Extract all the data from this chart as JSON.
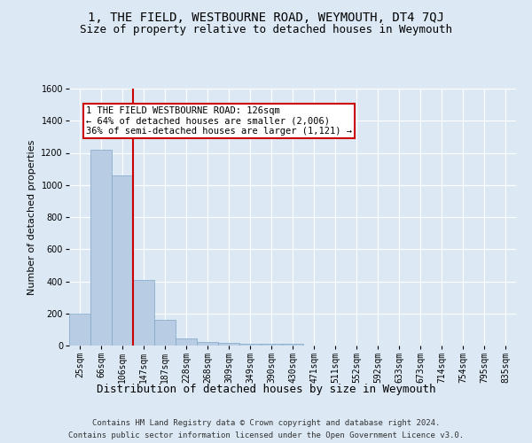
{
  "title": "1, THE FIELD, WESTBOURNE ROAD, WEYMOUTH, DT4 7QJ",
  "subtitle": "Size of property relative to detached houses in Weymouth",
  "xlabel": "Distribution of detached houses by size in Weymouth",
  "ylabel": "Number of detached properties",
  "bin_labels": [
    "25sqm",
    "66sqm",
    "106sqm",
    "147sqm",
    "187sqm",
    "228sqm",
    "268sqm",
    "309sqm",
    "349sqm",
    "390sqm",
    "430sqm",
    "471sqm",
    "511sqm",
    "552sqm",
    "592sqm",
    "633sqm",
    "673sqm",
    "714sqm",
    "754sqm",
    "795sqm",
    "835sqm"
  ],
  "bar_heights": [
    200,
    1220,
    1060,
    410,
    160,
    45,
    20,
    15,
    10,
    10,
    10,
    0,
    0,
    0,
    0,
    0,
    0,
    0,
    0,
    0,
    0
  ],
  "bar_color": "#b8cce4",
  "bar_edge_color": "#7ea6c8",
  "background_color": "#dce9f5",
  "plot_bg_color": "#dce9f5",
  "grid_color": "#ffffff",
  "red_line_x": 2.5,
  "red_line_color": "#cc0000",
  "annotation_text": "1 THE FIELD WESTBOURNE ROAD: 126sqm\n← 64% of detached houses are smaller (2,006)\n36% of semi-detached houses are larger (1,121) →",
  "annotation_box_color": "#ffffff",
  "annotation_box_edge_color": "#cc0000",
  "ylim": [
    0,
    1600
  ],
  "yticks": [
    0,
    200,
    400,
    600,
    800,
    1000,
    1200,
    1400,
    1600
  ],
  "footer_line1": "Contains HM Land Registry data © Crown copyright and database right 2024.",
  "footer_line2": "Contains public sector information licensed under the Open Government Licence v3.0.",
  "title_fontsize": 10,
  "subtitle_fontsize": 9,
  "xlabel_fontsize": 9,
  "ylabel_fontsize": 8,
  "annotation_fontsize": 7.5,
  "footer_fontsize": 6.5,
  "tick_fontsize": 7
}
